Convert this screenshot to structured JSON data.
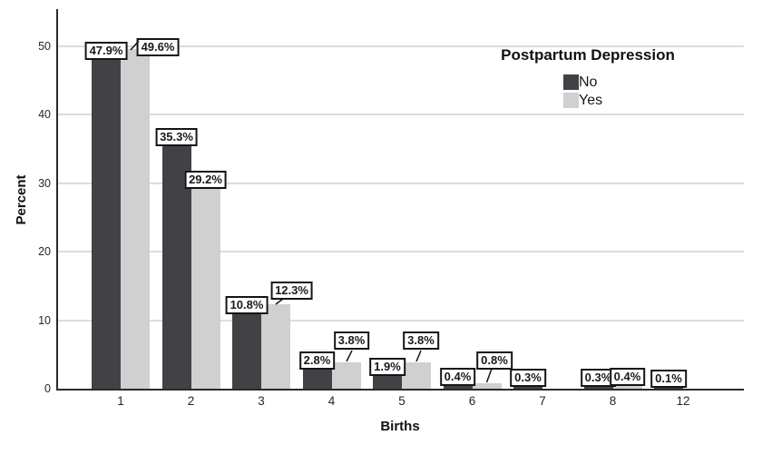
{
  "chart_data": {
    "type": "bar",
    "title": "",
    "xlabel": "Births",
    "ylabel": "Percent",
    "categories": [
      "1",
      "2",
      "3",
      "4",
      "5",
      "6",
      "7",
      "8",
      "12"
    ],
    "series": [
      {
        "name": "No",
        "color": "#424246",
        "values": [
          47.9,
          35.3,
          10.8,
          2.8,
          1.9,
          0.4,
          0.3,
          0.3,
          0.1
        ],
        "labels": [
          "47.9%",
          "35.3%",
          "10.8%",
          "2.8%",
          "1.9%",
          "0.4%",
          "0.3%",
          "0.3%",
          "0.1%"
        ]
      },
      {
        "name": "Yes",
        "color": "#d0d0d0",
        "values": [
          49.6,
          29.2,
          12.3,
          3.8,
          3.8,
          0.8,
          null,
          0.4,
          null
        ],
        "labels": [
          "49.6%",
          "29.2%",
          "12.3%",
          "3.8%",
          "3.8%",
          "0.8%",
          null,
          "0.4%",
          null
        ]
      }
    ],
    "legend_title": "Postpartum Depression",
    "legend_position": "top-right-inside",
    "yticks": [
      0,
      10,
      20,
      30,
      40,
      50
    ],
    "ytick_labels": [
      "0",
      "10",
      "20",
      "30",
      "40",
      "50"
    ],
    "ylim": [
      0,
      55
    ],
    "grid": "horizontal",
    "colors": {
      "axis": "#2b2b2b",
      "gridline": "#dcdcdc",
      "label_box_border": "#141414",
      "label_box_bg": "#ffffff"
    }
  }
}
